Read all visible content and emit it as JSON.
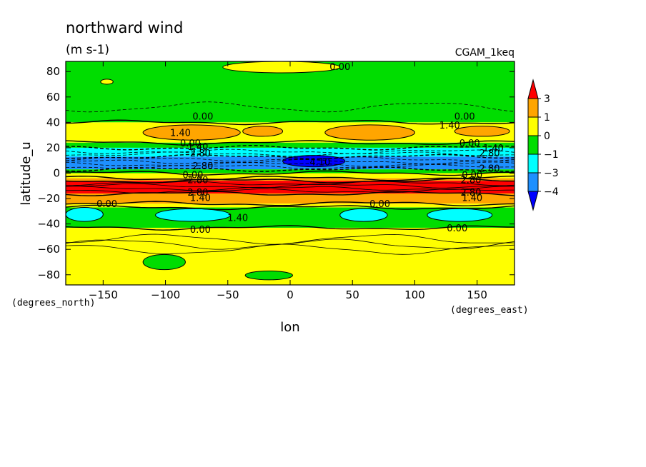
{
  "chart_data": {
    "type": "contour",
    "title": "northward wind",
    "units": "(m s-1)",
    "run_label": "CGAM_1keq",
    "xlabel": "lon",
    "ylabel": "latitude_u",
    "x_unit": "(degrees_east)",
    "y_unit": "(degrees_north)",
    "xlim": [
      -180,
      180
    ],
    "ylim": [
      -88,
      88
    ],
    "x_ticks": [
      -150,
      -100,
      -50,
      0,
      50,
      100,
      150
    ],
    "x_tick_labels": [
      "−150",
      "−100",
      "−50",
      "0",
      "50",
      "100",
      "150"
    ],
    "y_ticks": [
      80,
      60,
      40,
      20,
      0,
      -20,
      -40,
      -60,
      -80
    ],
    "y_tick_labels": [
      "80",
      "60",
      "40",
      "20",
      "0",
      "−20",
      "−40",
      "−60",
      "−80"
    ],
    "colorbar": {
      "levels": [
        3,
        1,
        0,
        -1,
        -3,
        -4
      ],
      "labels": [
        "3",
        "1",
        "0",
        "−1",
        "−3",
        "−4"
      ],
      "colors": [
        "#ff0000",
        "#ffa500",
        "#ffff00",
        "#00dd00",
        "#00ffff",
        "#1e90ff",
        "#0000ff"
      ]
    },
    "zonal_bands": [
      {
        "lat_top": 88,
        "lat_bottom": 40,
        "value": -0.5,
        "color": "#00dd00"
      },
      {
        "lat_top": 40,
        "lat_bottom": 24,
        "value": 0.5,
        "color": "#ffff00"
      },
      {
        "lat_top": 24,
        "lat_bottom": 20,
        "value": -0.5,
        "color": "#00dd00"
      },
      {
        "lat_top": 20,
        "lat_bottom": 13,
        "value": -2,
        "color": "#00ffff"
      },
      {
        "lat_top": 13,
        "lat_bottom": 3,
        "value": -3.5,
        "color": "#1e90ff"
      },
      {
        "lat_top": 3,
        "lat_bottom": 0,
        "value": -0.5,
        "color": "#00dd00"
      },
      {
        "lat_top": 0,
        "lat_bottom": -4,
        "value": 0.5,
        "color": "#ffff00"
      },
      {
        "lat_top": -4,
        "lat_bottom": -6,
        "value": 2,
        "color": "#ffa500"
      },
      {
        "lat_top": -6,
        "lat_bottom": -16,
        "value": 3.5,
        "color": "#ff0000"
      },
      {
        "lat_top": -16,
        "lat_bottom": -24,
        "value": 2,
        "color": "#ffa500"
      },
      {
        "lat_top": -24,
        "lat_bottom": -27,
        "value": 0.5,
        "color": "#ffff00"
      },
      {
        "lat_top": -27,
        "lat_bottom": -43,
        "value": -0.5,
        "color": "#00dd00"
      },
      {
        "lat_top": -43,
        "lat_bottom": -88,
        "value": 0.5,
        "color": "#ffff00"
      }
    ],
    "patches": [
      {
        "lon": [
          -118,
          -40
        ],
        "lat": [
          38,
          26
        ],
        "value": 2,
        "color": "#ffa500"
      },
      {
        "lon": [
          -38,
          -6
        ],
        "lat": [
          37,
          29
        ],
        "value": 2,
        "color": "#ffa500"
      },
      {
        "lon": [
          28,
          100
        ],
        "lat": [
          38,
          26
        ],
        "value": 2,
        "color": "#ffa500"
      },
      {
        "lon": [
          132,
          176
        ],
        "lat": [
          37,
          29
        ],
        "value": 2,
        "color": "#ffa500"
      },
      {
        "lon": [
          -180,
          -150
        ],
        "lat": [
          -27,
          -38
        ],
        "value": -2,
        "color": "#00ffff"
      },
      {
        "lon": [
          -108,
          -48
        ],
        "lat": [
          -28,
          -38
        ],
        "value": -2,
        "color": "#00ffff"
      },
      {
        "lon": [
          40,
          78
        ],
        "lat": [
          -28,
          -38
        ],
        "value": -2,
        "color": "#00ffff"
      },
      {
        "lon": [
          110,
          162
        ],
        "lat": [
          -28,
          -38
        ],
        "value": -2,
        "color": "#00ffff"
      },
      {
        "lon": [
          -118,
          -84
        ],
        "lat": [
          -64,
          -76
        ],
        "value": -0.5,
        "color": "#00dd00"
      },
      {
        "lon": [
          -36,
          2
        ],
        "lat": [
          -77,
          -84
        ],
        "value": -0.5,
        "color": "#00dd00"
      },
      {
        "lon": [
          -54,
          40
        ],
        "lat": [
          88,
          79
        ],
        "value": 0.5,
        "color": "#ffff00"
      },
      {
        "lon": [
          -152,
          -142
        ],
        "lat": [
          74,
          70
        ],
        "value": 0.5,
        "color": "#ffff00"
      },
      {
        "lon": [
          -6,
          44
        ],
        "lat": [
          14,
          5
        ],
        "value": -4.5,
        "color": "#0000ff"
      }
    ],
    "contour_labels": [
      {
        "text": "0.00",
        "lon": 40,
        "lat": 84
      },
      {
        "text": "0.00",
        "lon": -70,
        "lat": 45
      },
      {
        "text": "0.00",
        "lon": 140,
        "lat": 45
      },
      {
        "text": "1.40",
        "lon": -88,
        "lat": 32
      },
      {
        "text": "1.40",
        "lon": 128,
        "lat": 38
      },
      {
        "text": "0.00",
        "lon": -80,
        "lat": 24
      },
      {
        "text": "0.00",
        "lon": 144,
        "lat": 24
      },
      {
        "text": "1.40",
        "lon": -74,
        "lat": 21
      },
      {
        "text": "1.40",
        "lon": 163,
        "lat": 20
      },
      {
        "text": "2.80",
        "lon": -72,
        "lat": 16
      },
      {
        "text": "2.80",
        "lon": 160,
        "lat": 16
      },
      {
        "text": "4.10",
        "lon": 24,
        "lat": 9
      },
      {
        "text": "2.80",
        "lon": -70,
        "lat": 6
      },
      {
        "text": "2.80",
        "lon": 160,
        "lat": 4
      },
      {
        "text": "0.00",
        "lon": -78,
        "lat": -1
      },
      {
        "text": "0.00",
        "lon": 146,
        "lat": -1
      },
      {
        "text": "2.80",
        "lon": -74,
        "lat": -5
      },
      {
        "text": "2.80",
        "lon": 145,
        "lat": -5
      },
      {
        "text": "2.80",
        "lon": -74,
        "lat": -15
      },
      {
        "text": "2.80",
        "lon": 145,
        "lat": -15
      },
      {
        "text": "1.40",
        "lon": -72,
        "lat": -19
      },
      {
        "text": "1.40",
        "lon": 146,
        "lat": -19
      },
      {
        "text": "0.00",
        "lon": -147,
        "lat": -24
      },
      {
        "text": "0.00",
        "lon": 72,
        "lat": -24
      },
      {
        "text": "1.40",
        "lon": -42,
        "lat": -35
      },
      {
        "text": "0.00",
        "lon": -72,
        "lat": -44
      },
      {
        "text": "0.00",
        "lon": 134,
        "lat": -43
      }
    ]
  }
}
